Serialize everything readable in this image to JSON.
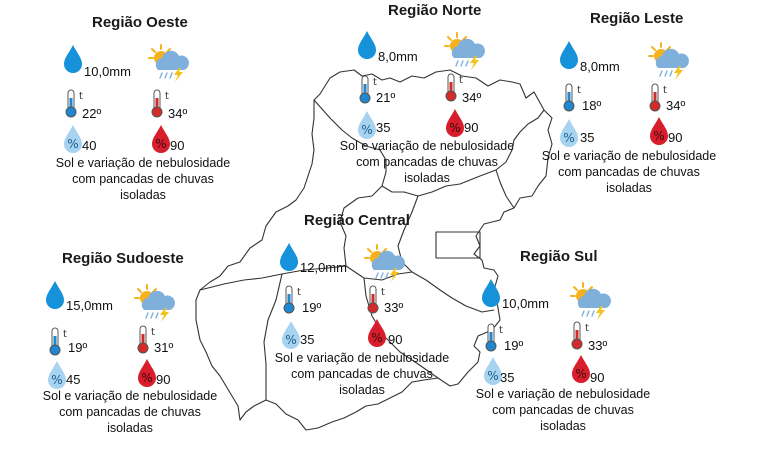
{
  "regions": [
    {
      "name": "Região Oeste",
      "rain": "10,0mm",
      "temp_min": "22º",
      "temp_max": "34º",
      "humidity_min": "40",
      "humidity_max": "90",
      "description": "Sol e variação de nebulosidade com pancadas de chuvas isoladas",
      "weather_icon": "sun-cloud-rain-lightning-icon"
    },
    {
      "name": "Região Norte",
      "rain": "8,0mm",
      "temp_min": "21º",
      "temp_max": "34º",
      "humidity_min": "35",
      "humidity_max": "90",
      "description": "Sol e variação de nebulosidade com pancadas de chuvas isoladas",
      "weather_icon": "sun-cloud-rain-lightning-icon"
    },
    {
      "name": "Região Leste",
      "rain": "8,0mm",
      "temp_min": "18º",
      "temp_max": "34º",
      "humidity_min": "35",
      "humidity_max": "90",
      "description": "Sol e variação de nebulosidade com pancadas de chuvas isoladas",
      "weather_icon": "sun-cloud-rain-lightning-icon"
    },
    {
      "name": "Região Central",
      "rain": "12,0mm",
      "temp_min": "19º",
      "temp_max": "33º",
      "humidity_min": "35",
      "humidity_max": "90",
      "description": "Sol e variação de nebulosidade com pancadas de chuvas isoladas",
      "weather_icon": "sun-cloud-rain-lightning-icon"
    },
    {
      "name": "Região Sudoeste",
      "rain": "15,0mm",
      "temp_min": "19º",
      "temp_max": "31º",
      "humidity_min": "45",
      "humidity_max": "90",
      "description": "Sol e variação de nebulosidade com pancadas de chuvas isoladas",
      "weather_icon": "sun-cloud-rain-lightning-icon"
    },
    {
      "name": "Região Sul",
      "rain": "10,0mm",
      "temp_min": "19º",
      "temp_max": "33º",
      "humidity_min": "35",
      "humidity_max": "90",
      "description": "Sol e variação de nebulosidade com pancadas de chuvas isoladas",
      "weather_icon": "sun-cloud-rain-lightning-icon"
    }
  ],
  "icon_glyphs": {
    "thermometer": "t",
    "humidity": "%"
  },
  "colors": {
    "rain_drop": "#1592d9",
    "temp_min": "#1f86d0",
    "temp_max": "#d42a2a",
    "humidity_min": "#a7d3f0",
    "humidity_max": "#d81e2c",
    "sun": "#f6b21c",
    "cloud": "#7fb0dc",
    "lightning": "#f2c21a",
    "map_border": "#333333"
  }
}
